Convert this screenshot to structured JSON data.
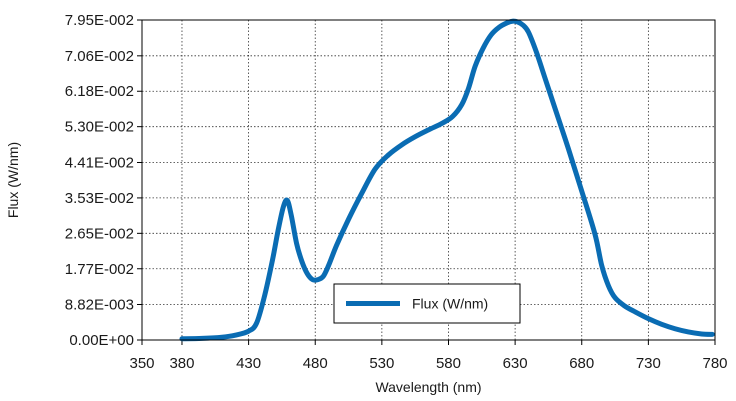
{
  "chart_data": {
    "type": "line",
    "title": "",
    "xlabel": "Wavelength (nm)",
    "ylabel": "Flux (W/nm)",
    "xlim": [
      350,
      780
    ],
    "ylim": [
      0,
      0.0795
    ],
    "x_ticks": [
      "350",
      "380",
      "430",
      "480",
      "530",
      "580",
      "630",
      "680",
      "730",
      "780"
    ],
    "x_tick_values": [
      350,
      380,
      430,
      480,
      530,
      580,
      630,
      680,
      730,
      780
    ],
    "y_ticks": [
      "0.00E+00",
      "8.82E-003",
      "1.77E-002",
      "2.65E-002",
      "3.53E-002",
      "4.41E-002",
      "5.30E-002",
      "6.18E-002",
      "7.06E-002",
      "7.95E-002"
    ],
    "y_tick_values": [
      0,
      0.00882,
      0.0177,
      0.0265,
      0.0353,
      0.0441,
      0.053,
      0.0618,
      0.0706,
      0.0795
    ],
    "grid": true,
    "legend": {
      "position": "bottom-center",
      "entries": [
        "Flux (W/nm)"
      ]
    },
    "series": [
      {
        "name": "Flux (W/nm)",
        "color": "#0a6cb3",
        "x": [
          380,
          395,
          410,
          420,
          430,
          436,
          442,
          448,
          452,
          456,
          459,
          462,
          466,
          470,
          474,
          478,
          482,
          486,
          490,
          496,
          505,
          515,
          525,
          535,
          545,
          555,
          565,
          575,
          583,
          590,
          595,
          600,
          606,
          612,
          618,
          624,
          628,
          632,
          636,
          640,
          646,
          652,
          660,
          670,
          680,
          690,
          695,
          700,
          705,
          712,
          720,
          730,
          740,
          750,
          760,
          770,
          778
        ],
        "y": [
          0.0003,
          0.0004,
          0.0007,
          0.0012,
          0.0022,
          0.0042,
          0.011,
          0.02,
          0.027,
          0.033,
          0.0347,
          0.031,
          0.024,
          0.0195,
          0.0165,
          0.015,
          0.015,
          0.0158,
          0.0185,
          0.0235,
          0.03,
          0.0365,
          0.0425,
          0.046,
          0.0485,
          0.0505,
          0.0522,
          0.0538,
          0.0555,
          0.0585,
          0.0625,
          0.068,
          0.0725,
          0.0758,
          0.0777,
          0.0788,
          0.0792,
          0.079,
          0.0782,
          0.0765,
          0.0715,
          0.0655,
          0.0575,
          0.0475,
          0.037,
          0.0262,
          0.0185,
          0.0135,
          0.0105,
          0.0085,
          0.007,
          0.0053,
          0.0039,
          0.0028,
          0.002,
          0.0015,
          0.0014
        ]
      }
    ]
  }
}
